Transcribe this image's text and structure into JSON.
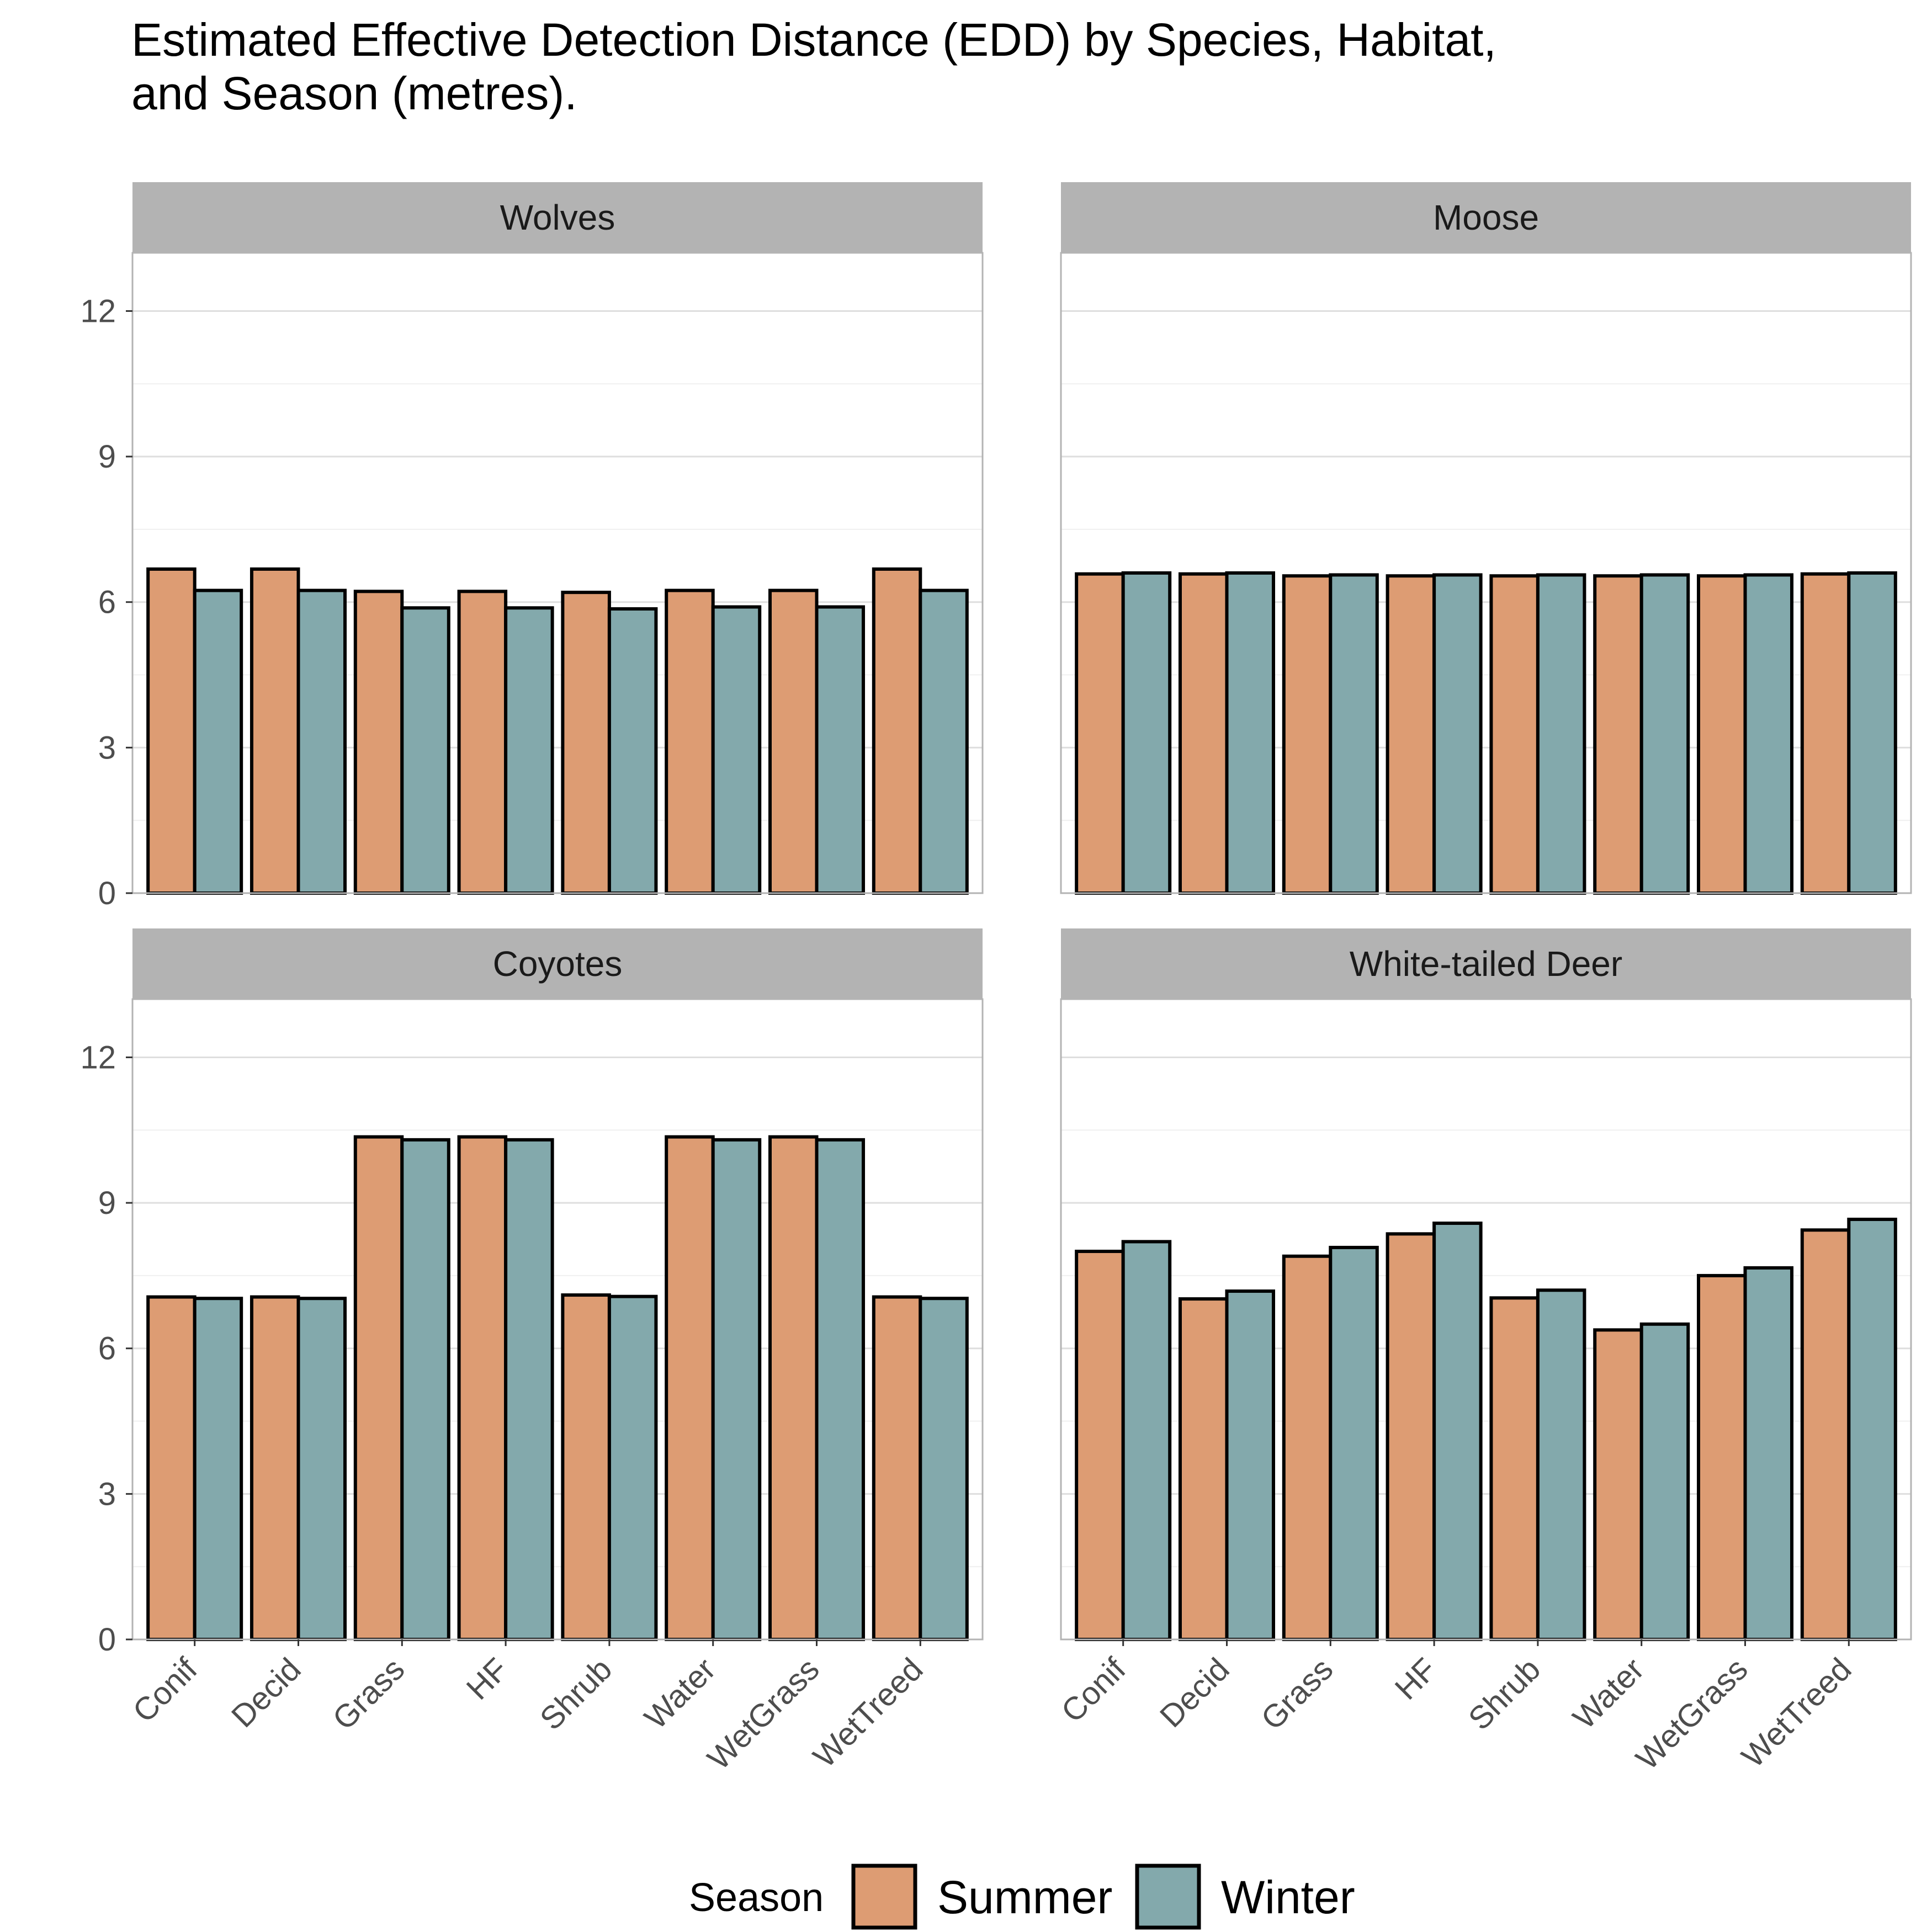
{
  "chart_data": {
    "type": "bar",
    "title_lines": [
      "Estimated Effective Detection Distance (EDD) by Species, Habitat,",
      "and Season (metres)."
    ],
    "xlabel": "",
    "ylabel": "",
    "ylim": [
      0,
      13.2
    ],
    "y_ticks": [
      "0",
      "3",
      "6",
      "9",
      "12"
    ],
    "categories": [
      "Conif",
      "Decid",
      "Grass",
      "HF",
      "Shrub",
      "Water",
      "WetGrass",
      "WetTreed"
    ],
    "grid": true,
    "legend": {
      "title": "Season",
      "position": "bottom",
      "items": [
        "Summer",
        "Winter"
      ]
    },
    "colors": {
      "Summer": "#DD9C73",
      "Winter": "#83A9AC",
      "outline": "#000000",
      "strip": "#B3B3B3",
      "grid": "#DEDEDE",
      "panel_border": "#B3B3B3"
    },
    "facets": [
      {
        "panel": "Wolves",
        "series": [
          {
            "name": "Summer",
            "values": [
              6.68,
              6.68,
              6.22,
              6.22,
              6.2,
              6.24,
              6.24,
              6.68
            ]
          },
          {
            "name": "Winter",
            "values": [
              6.24,
              6.24,
              5.88,
              5.88,
              5.86,
              5.9,
              5.9,
              6.24
            ]
          }
        ]
      },
      {
        "panel": "Moose",
        "series": [
          {
            "name": "Summer",
            "values": [
              6.58,
              6.58,
              6.54,
              6.54,
              6.54,
              6.54,
              6.54,
              6.58
            ]
          },
          {
            "name": "Winter",
            "values": [
              6.6,
              6.6,
              6.56,
              6.56,
              6.56,
              6.56,
              6.56,
              6.6
            ]
          }
        ]
      },
      {
        "panel": "Coyotes",
        "series": [
          {
            "name": "Summer",
            "values": [
              7.06,
              7.06,
              10.36,
              10.36,
              7.1,
              10.36,
              10.36,
              7.06
            ]
          },
          {
            "name": "Winter",
            "values": [
              7.03,
              7.03,
              10.3,
              10.3,
              7.07,
              10.3,
              10.3,
              7.03
            ]
          }
        ]
      },
      {
        "panel": "White-tailed Deer",
        "series": [
          {
            "name": "Summer",
            "values": [
              8.0,
              7.02,
              7.9,
              8.36,
              7.04,
              6.38,
              7.5,
              8.44
            ]
          },
          {
            "name": "Winter",
            "values": [
              8.2,
              7.18,
              8.08,
              8.58,
              7.2,
              6.5,
              7.66,
              8.66
            ]
          }
        ]
      }
    ]
  }
}
